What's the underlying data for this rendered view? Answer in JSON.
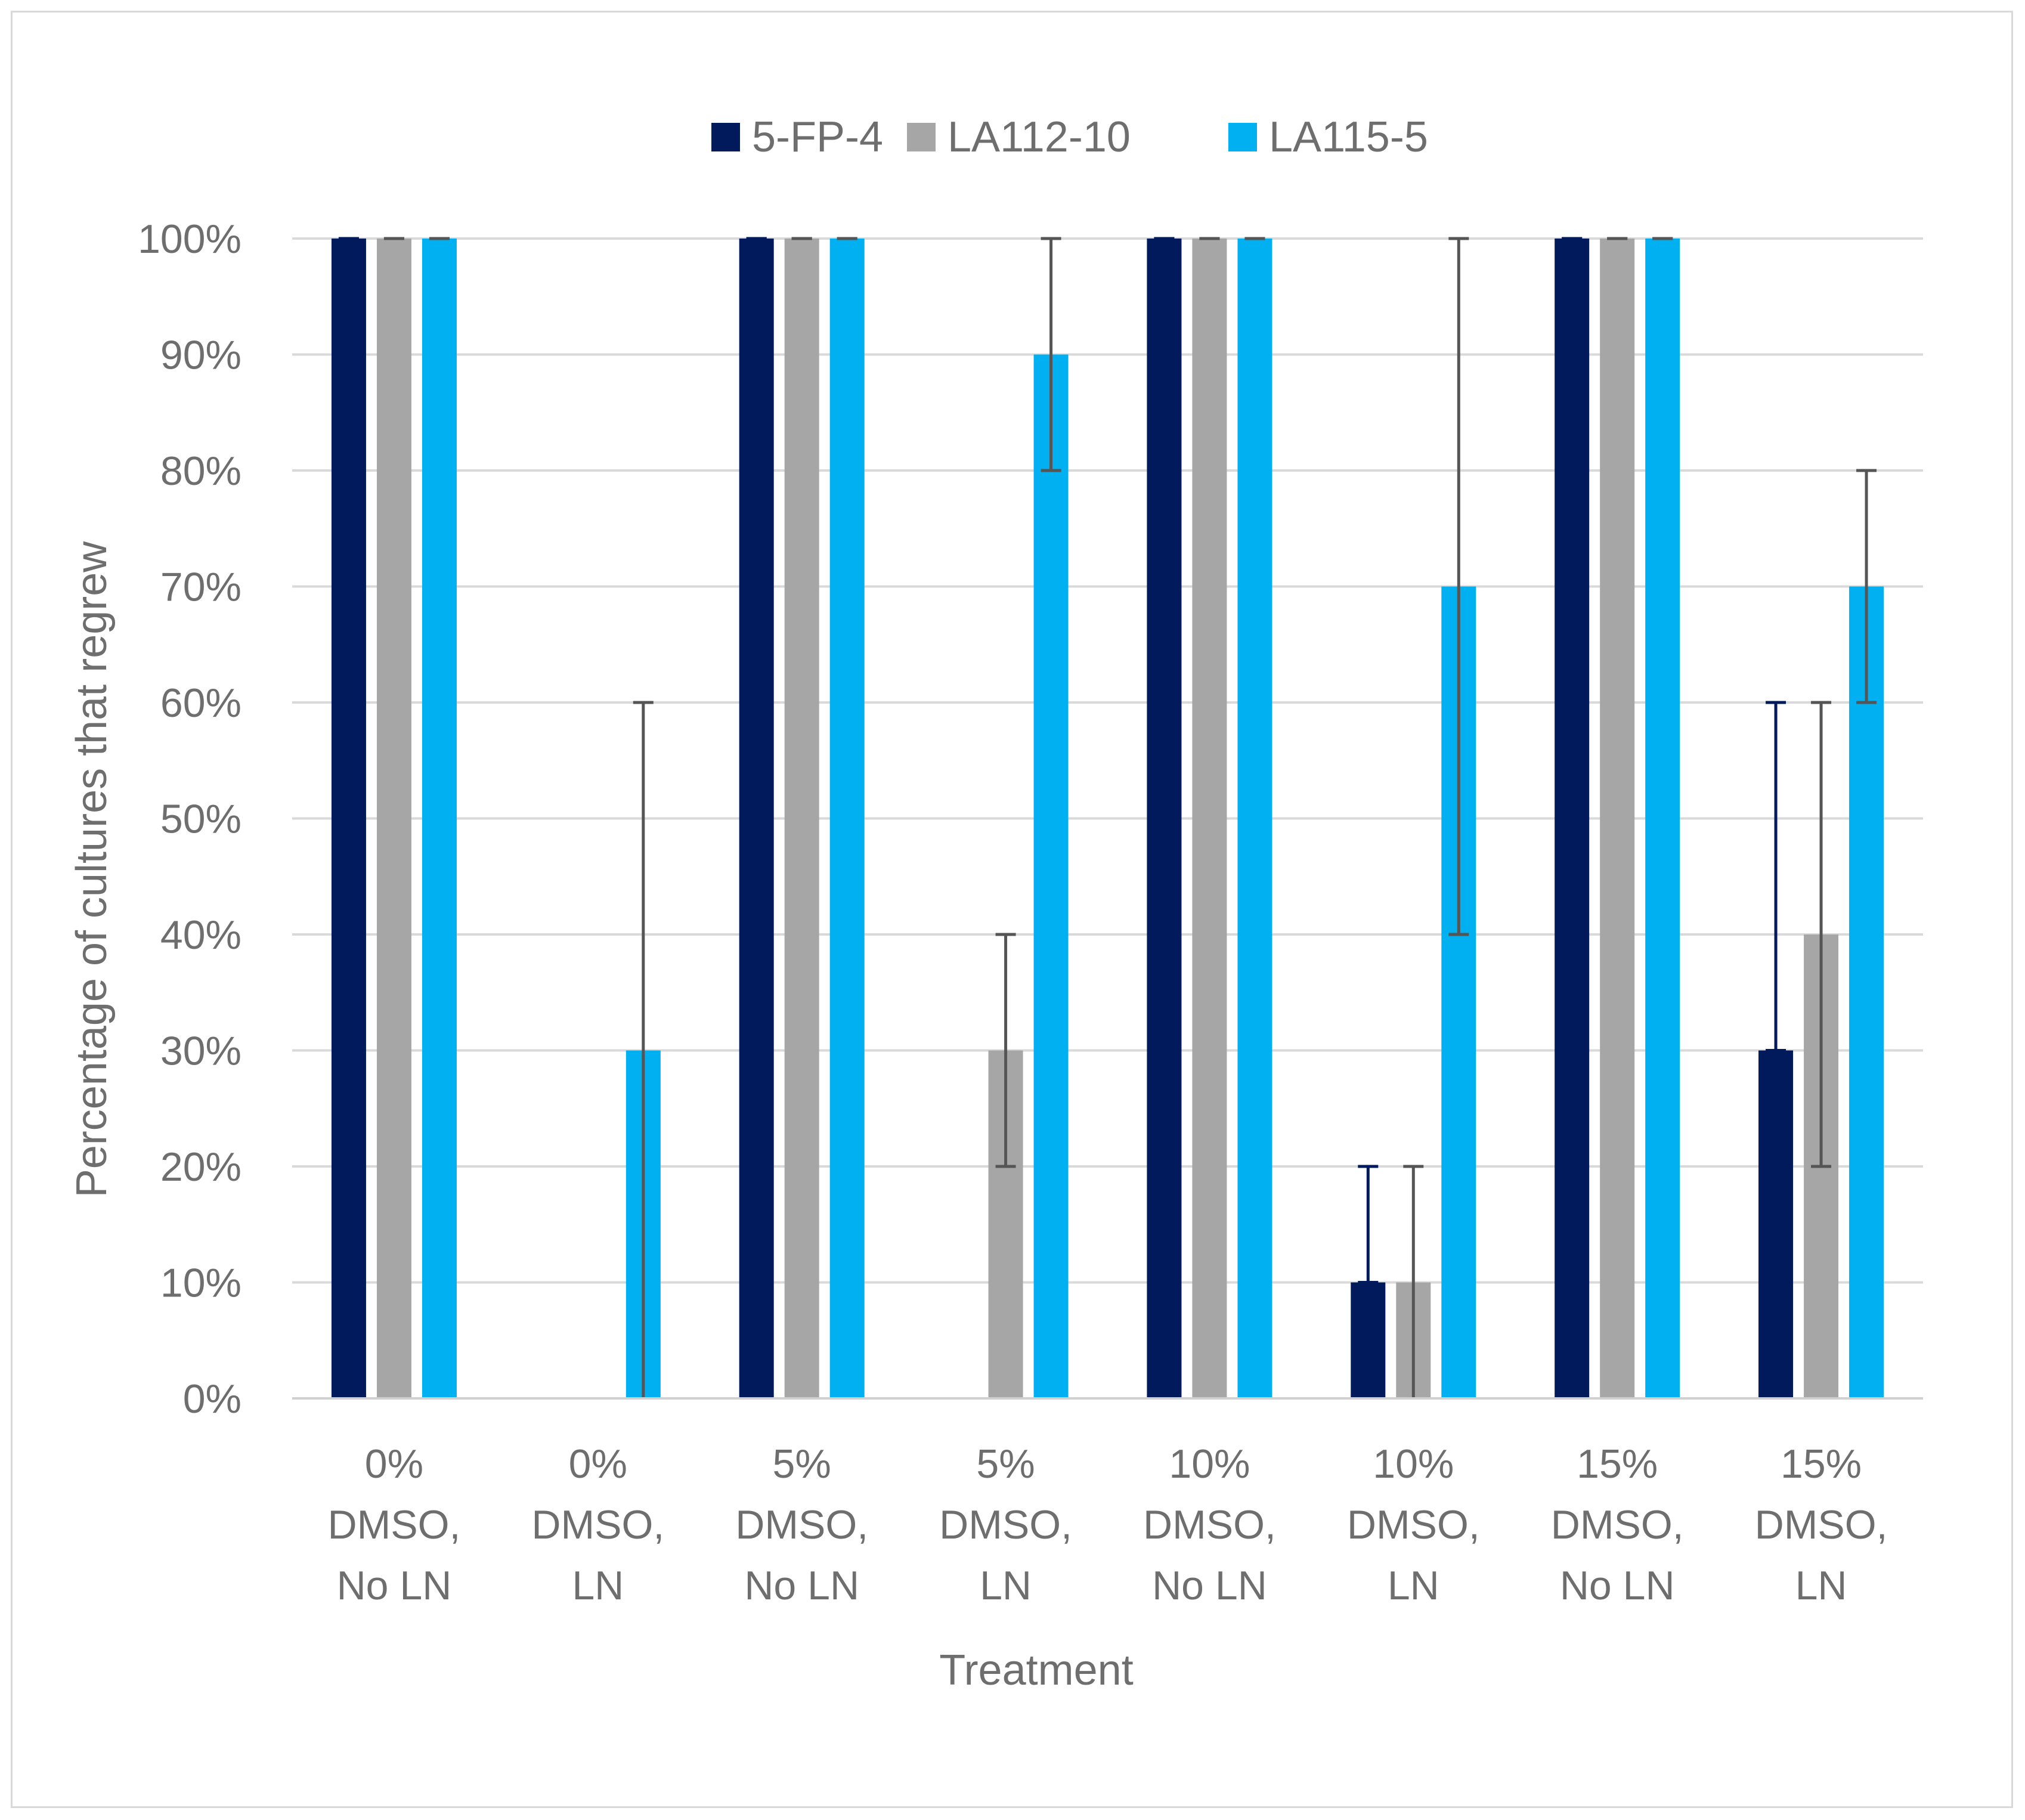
{
  "chart_data": {
    "type": "bar",
    "title": "",
    "xlabel": "Treatment",
    "ylabel": "Percentage of cultures that regrew",
    "ylim": [
      0,
      100
    ],
    "yticks": [
      "0%",
      "10%",
      "20%",
      "30%",
      "40%",
      "50%",
      "60%",
      "70%",
      "80%",
      "90%",
      "100%"
    ],
    "grid": true,
    "legend_position": "top-center",
    "categories": [
      [
        "0%",
        "DMSO,",
        "No LN"
      ],
      [
        "0%",
        "DMSO,",
        "LN"
      ],
      [
        "5%",
        "DMSO,",
        "No LN"
      ],
      [
        "5%",
        "DMSO,",
        "LN"
      ],
      [
        "10%",
        "DMSO,",
        "No LN"
      ],
      [
        "10%",
        "DMSO,",
        "LN"
      ],
      [
        "15%",
        "DMSO,",
        "No LN"
      ],
      [
        "15%",
        "DMSO,",
        "LN"
      ]
    ],
    "series": [
      {
        "name": "5-FP-4",
        "color": "#001a5c",
        "error_color": "#001a5c",
        "values": [
          100,
          0,
          100,
          0,
          100,
          10,
          100,
          30
        ],
        "error_low": [
          100,
          null,
          100,
          null,
          100,
          10,
          100,
          30
        ],
        "error_high": [
          100,
          null,
          100,
          null,
          100,
          20,
          100,
          60
        ]
      },
      {
        "name": "LA112-10",
        "color": "#a6a6a6",
        "error_color": "#555555",
        "values": [
          100,
          0,
          100,
          30,
          100,
          10,
          100,
          40
        ],
        "error_low": [
          100,
          null,
          100,
          20,
          100,
          0,
          100,
          20
        ],
        "error_high": [
          100,
          null,
          100,
          40,
          100,
          20,
          100,
          60
        ]
      },
      {
        "name": "LA115-5",
        "color": "#00b0f0",
        "error_color": "#555555",
        "values": [
          100,
          30,
          100,
          90,
          100,
          70,
          100,
          70
        ],
        "error_low": [
          100,
          0,
          100,
          80,
          100,
          40,
          100,
          60
        ],
        "error_high": [
          100,
          60,
          100,
          100,
          100,
          100,
          100,
          80
        ]
      }
    ]
  }
}
